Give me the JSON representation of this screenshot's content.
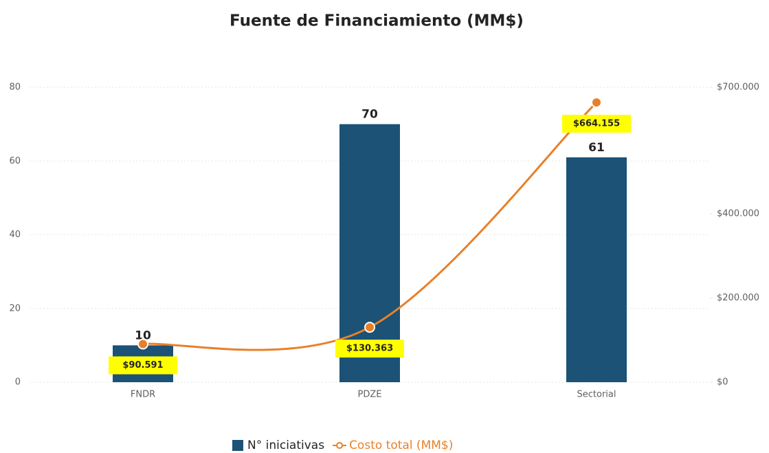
{
  "chart_data": {
    "type": "bar-line",
    "title": "Fuente de Financiamiento (MM$)",
    "categories": [
      "FNDR",
      "PDZE",
      "Sectorial"
    ],
    "series": [
      {
        "name": "N° iniciativas",
        "color": "#1b5276",
        "type": "bar",
        "values": [
          10,
          70,
          61
        ]
      },
      {
        "name": "Costo total (MM$)",
        "color": "#e8802a",
        "type": "line",
        "axis": "y2",
        "values": [
          90591,
          130363,
          664155
        ],
        "value_labels": [
          "$90.591",
          "$130.363",
          "$664.155"
        ]
      }
    ],
    "ylim": [
      0,
      80
    ],
    "yticks": [
      0,
      20,
      40,
      60,
      80
    ],
    "y2lim": [
      0,
      700000
    ],
    "y2ticks": [
      {
        "value": 0,
        "label": "$0"
      },
      {
        "value": 200000,
        "label": "$200.000"
      },
      {
        "value": 400000,
        "label": "$400.000"
      },
      {
        "value": 700000,
        "label": "$700.000"
      }
    ],
    "grid": true,
    "legend": "bottom"
  }
}
